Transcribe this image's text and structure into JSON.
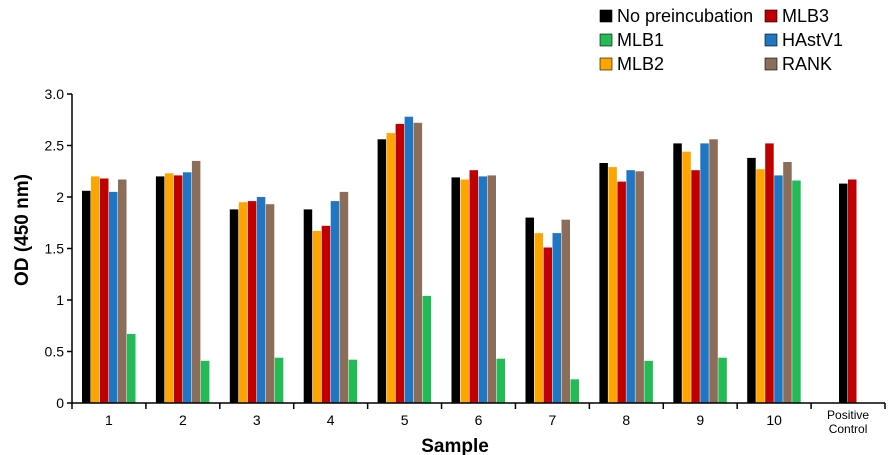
{
  "chart_data": {
    "type": "bar",
    "xlabel": "Sample",
    "ylabel": "OD (450 nm)",
    "ylim": [
      0,
      3.0
    ],
    "yticks": [
      "0",
      "0.5",
      "1",
      "1.5",
      "2",
      "2.5",
      "3.0"
    ],
    "yticks_values": [
      0,
      0.5,
      1,
      1.5,
      2,
      2.5,
      3.0
    ],
    "grid": false,
    "legend_position": "top-right",
    "categories": [
      "1",
      "2",
      "3",
      "4",
      "5",
      "6",
      "7",
      "8",
      "9",
      "10",
      "Positive Control"
    ],
    "category_labels": [
      [
        "1"
      ],
      [
        "2"
      ],
      [
        "3"
      ],
      [
        "4"
      ],
      [
        "5"
      ],
      [
        "6"
      ],
      [
        "7"
      ],
      [
        "8"
      ],
      [
        "9"
      ],
      [
        "10"
      ],
      [
        "Positive",
        "Control"
      ]
    ],
    "series": [
      {
        "name": "No preincubation",
        "color": "#000000",
        "values": [
          2.06,
          2.2,
          1.88,
          1.88,
          2.56,
          2.19,
          1.8,
          2.33,
          2.52,
          2.38,
          2.13
        ]
      },
      {
        "name": "MLB2",
        "color": "#ffa500",
        "values": [
          2.2,
          2.23,
          1.95,
          1.67,
          2.62,
          2.17,
          1.65,
          2.29,
          2.44,
          2.27,
          null
        ]
      },
      {
        "name": "MLB3",
        "color": "#c00000",
        "values": [
          2.18,
          2.21,
          1.96,
          1.72,
          2.71,
          2.26,
          1.51,
          2.15,
          2.26,
          2.52,
          2.17
        ]
      },
      {
        "name": "HAstV1",
        "color": "#1f77c4",
        "values": [
          2.05,
          2.24,
          2.0,
          1.96,
          2.78,
          2.2,
          1.65,
          2.26,
          2.52,
          2.21,
          null
        ]
      },
      {
        "name": "RANK",
        "color": "#8c6d5a",
        "values": [
          2.17,
          2.35,
          1.93,
          2.05,
          2.72,
          2.21,
          1.78,
          2.25,
          2.56,
          2.34,
          null
        ]
      },
      {
        "name": "MLB1",
        "color": "#22bb55",
        "values": [
          0.67,
          0.41,
          0.44,
          0.42,
          1.04,
          0.43,
          0.23,
          0.41,
          0.44,
          2.16,
          null
        ]
      }
    ],
    "legend": {
      "columns": [
        [
          "No preincubation",
          "MLB1",
          "MLB2"
        ],
        [
          "MLB3",
          "HAstV1",
          "RANK"
        ]
      ]
    }
  }
}
